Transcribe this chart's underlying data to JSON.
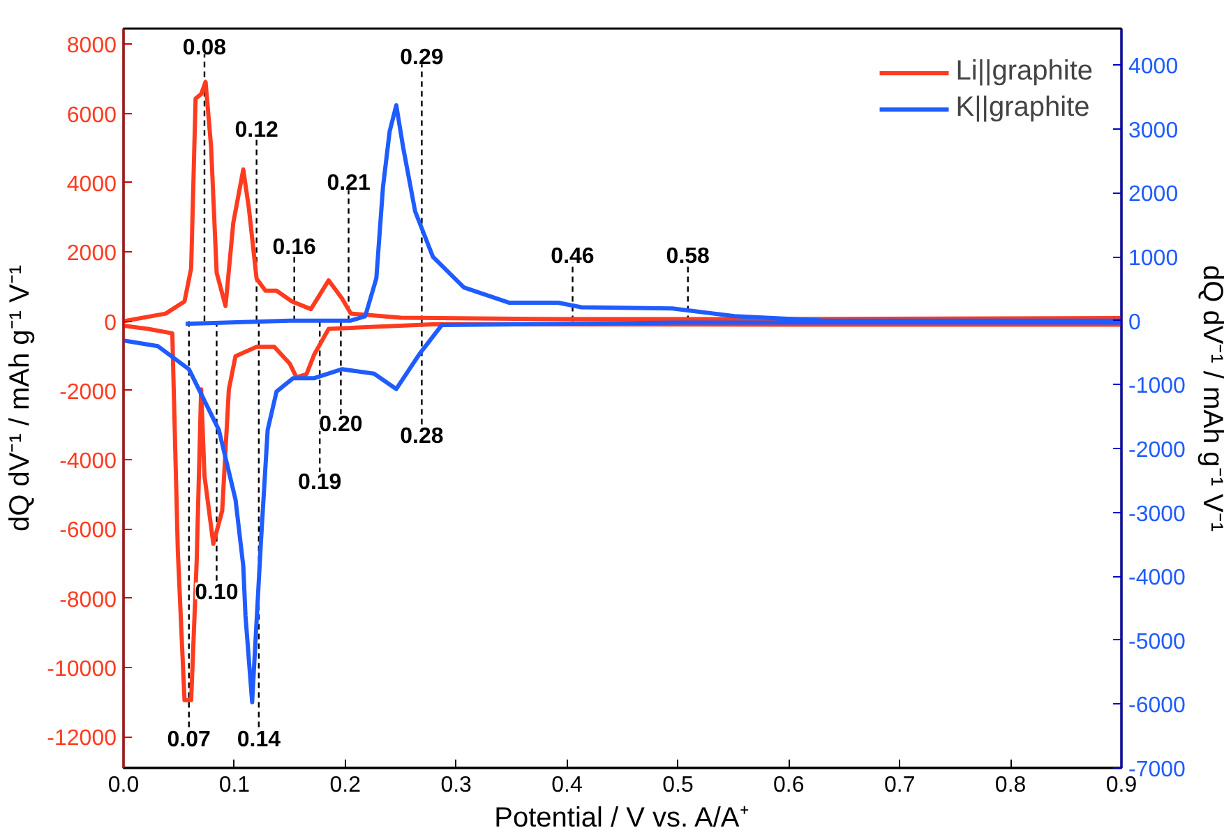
{
  "chart_data": {
    "type": "line",
    "xlabel": "Potential / V vs. A/A⁺",
    "ylabel": "dQ dV⁻¹ / mAh g⁻¹ V⁻¹",
    "y2label": "dQ dV⁻¹ / mAh g⁻¹ V⁻¹",
    "xlim": [
      0.0,
      0.9
    ],
    "xticks": [
      {
        "value": 0.0,
        "label": "0.0"
      },
      0.1,
      0.2,
      0.3,
      0.4,
      0.5,
      0.6,
      0.7,
      0.8,
      0.9
    ],
    "ylim": [
      -12900,
      8450
    ],
    "yticks": [
      -12000,
      -10000,
      -8000,
      -6000,
      -4000,
      -2000,
      0,
      2000,
      4000,
      6000,
      8000
    ],
    "y2lim": [
      -7000,
      4570
    ],
    "y2ticks": [
      -7000,
      -6000,
      -5000,
      -4000,
      -3000,
      -2000,
      -1000,
      0,
      1000,
      2000,
      3000,
      4000
    ],
    "grid": false,
    "legend": "top right",
    "marker": "none",
    "line_style": "solid",
    "annotations": [
      {
        "text": "0.08",
        "x": 0.073,
        "y": 7950
      },
      {
        "text": "0.12",
        "x": 0.12,
        "y": 5560
      },
      {
        "text": "0.16",
        "x": 0.154,
        "y": 2190
      },
      {
        "text": "0.21",
        "x": 0.203,
        "y": 4030
      },
      {
        "text": "0.19",
        "x": 0.177,
        "y": -4600
      },
      {
        "text": "0.10",
        "x": 0.084,
        "y": -7790
      },
      {
        "text": "0.07",
        "x": 0.059,
        "y": -12030
      },
      {
        "text": "0.29",
        "x": 0.269,
        "y": 7660
      },
      {
        "text": "0.46",
        "x": 0.405,
        "y": 1930
      },
      {
        "text": "0.58",
        "x": 0.509,
        "y": 1930
      },
      {
        "text": "0.20",
        "x": 0.196,
        "y": -2930
      },
      {
        "text": "0.28",
        "x": 0.269,
        "y": -3280
      },
      {
        "text": "0.14",
        "x": 0.122,
        "y": -12030
      }
    ],
    "series": [
      {
        "name": "Li||graphite",
        "color": "#ff3b1f",
        "x": [
          0.0,
          0.038,
          0.055,
          0.061,
          0.065,
          0.07,
          0.074,
          0.079,
          0.084,
          0.092,
          0.099,
          0.108,
          0.113,
          0.12,
          0.128,
          0.138,
          0.152,
          0.169,
          0.185,
          0.197,
          0.205,
          0.25,
          0.4,
          0.6,
          0.9,
          0.9,
          0.6,
          0.4,
          0.279,
          0.185,
          0.172,
          0.165,
          0.156,
          0.15,
          0.136,
          0.12,
          0.101,
          0.095,
          0.089,
          0.081,
          0.073,
          0.07,
          0.066,
          0.064,
          0.061,
          0.055,
          0.049,
          0.044,
          0.022,
          0.0
        ],
        "values": [
          0,
          220,
          570,
          1530,
          6430,
          6560,
          6910,
          5030,
          1400,
          440,
          2840,
          4380,
          3280,
          1230,
          880,
          880,
          570,
          350,
          1180,
          660,
          220,
          100,
          60,
          60,
          90,
          -100,
          -100,
          -90,
          -90,
          -220,
          -960,
          -1530,
          -1620,
          -1230,
          -740,
          -740,
          -1010,
          -1970,
          -5470,
          -6430,
          -4460,
          -1970,
          -6910,
          -8530,
          -10940,
          -10940,
          -6650,
          -350,
          -220,
          -130
        ]
      },
      {
        "name": "K||graphite",
        "color": "#1f5cff",
        "axis": "y2",
        "x": [
          0.056,
          0.15,
          0.205,
          0.218,
          0.228,
          0.234,
          0.24,
          0.246,
          0.252,
          0.263,
          0.279,
          0.307,
          0.348,
          0.392,
          0.413,
          0.495,
          0.551,
          0.633,
          0.9,
          0.9,
          0.5,
          0.287,
          0.267,
          0.246,
          0.226,
          0.197,
          0.172,
          0.153,
          0.138,
          0.13,
          0.124,
          0.116,
          0.11,
          0.108,
          0.101,
          0.086,
          0.059,
          0.031,
          0.0
        ],
        "values": [
          -50,
          0,
          0,
          70,
          660,
          2090,
          2960,
          3370,
          2730,
          1710,
          1000,
          520,
          280,
          280,
          210,
          190,
          70,
          0,
          0,
          -30,
          -30,
          -70,
          -520,
          -1070,
          -830,
          -760,
          -900,
          -900,
          -1110,
          -1710,
          -3440,
          -5970,
          -4620,
          -3840,
          -2800,
          -1710,
          -760,
          -400,
          -310
        ]
      }
    ]
  }
}
